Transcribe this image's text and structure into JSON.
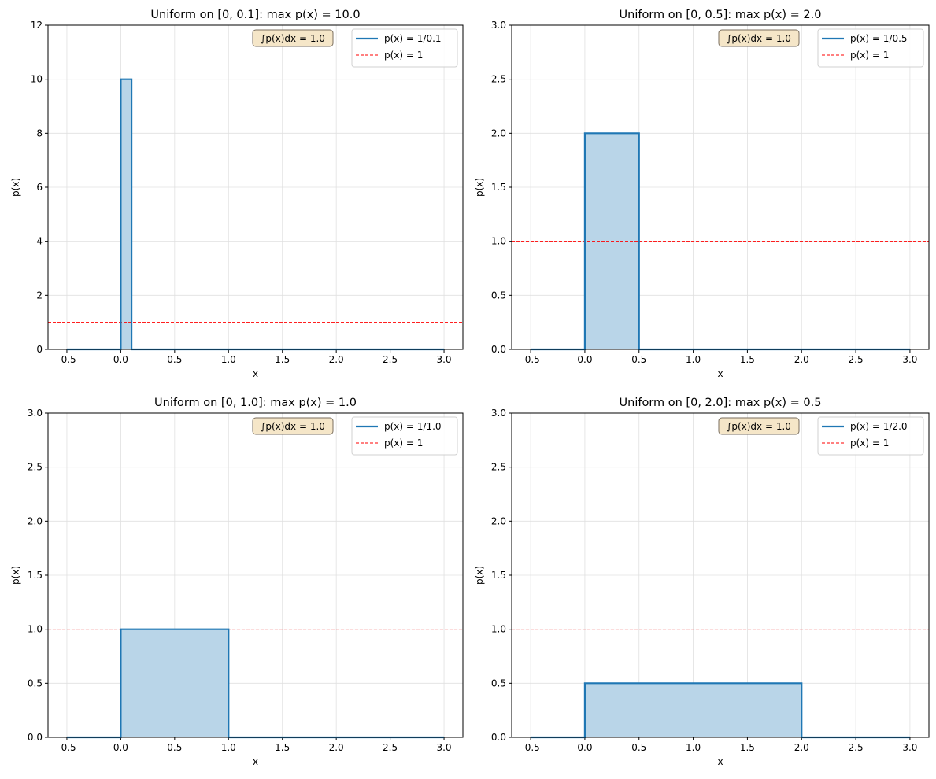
{
  "chart_data": [
    {
      "type": "area",
      "title": "Uniform on [0, 0.1]: max p(x) = 10.0",
      "xlabel": "x",
      "ylabel": "p(x)",
      "xlim": [
        -0.675,
        3.175
      ],
      "ylim": [
        0,
        12
      ],
      "xticks": [
        "-0.5",
        "0.0",
        "0.5",
        "1.0",
        "1.5",
        "2.0",
        "2.5",
        "3.0"
      ],
      "yticks": [
        "0",
        "2",
        "4",
        "6",
        "8",
        "10",
        "12"
      ],
      "interval": [
        0,
        0.1
      ],
      "density": 10.0,
      "x_range": [
        -0.5,
        3.0
      ],
      "reference_line": 1,
      "legend": [
        "p(x) = 1/0.1",
        "p(x) = 1"
      ],
      "annotation": "∫p(x)dx = 1.0",
      "grid": true,
      "legend_position": "top-right"
    },
    {
      "type": "area",
      "title": "Uniform on [0, 0.5]: max p(x) = 2.0",
      "xlabel": "x",
      "ylabel": "p(x)",
      "xlim": [
        -0.675,
        3.175
      ],
      "ylim": [
        0,
        3
      ],
      "xticks": [
        "-0.5",
        "0.0",
        "0.5",
        "1.0",
        "1.5",
        "2.0",
        "2.5",
        "3.0"
      ],
      "yticks": [
        "0.0",
        "0.5",
        "1.0",
        "1.5",
        "2.0",
        "2.5",
        "3.0"
      ],
      "interval": [
        0,
        0.5
      ],
      "density": 2.0,
      "x_range": [
        -0.5,
        3.0
      ],
      "reference_line": 1,
      "legend": [
        "p(x) = 1/0.5",
        "p(x) = 1"
      ],
      "annotation": "∫p(x)dx = 1.0",
      "grid": true,
      "legend_position": "top-right"
    },
    {
      "type": "area",
      "title": "Uniform on [0, 1.0]: max p(x) = 1.0",
      "xlabel": "x",
      "ylabel": "p(x)",
      "xlim": [
        -0.675,
        3.175
      ],
      "ylim": [
        0,
        3
      ],
      "xticks": [
        "-0.5",
        "0.0",
        "0.5",
        "1.0",
        "1.5",
        "2.0",
        "2.5",
        "3.0"
      ],
      "yticks": [
        "0.0",
        "0.5",
        "1.0",
        "1.5",
        "2.0",
        "2.5",
        "3.0"
      ],
      "interval": [
        0,
        1.0
      ],
      "density": 1.0,
      "x_range": [
        -0.5,
        3.0
      ],
      "reference_line": 1,
      "legend": [
        "p(x) = 1/1.0",
        "p(x) = 1"
      ],
      "annotation": "∫p(x)dx = 1.0",
      "grid": true,
      "legend_position": "top-right"
    },
    {
      "type": "area",
      "title": "Uniform on [0, 2.0]: max p(x) = 0.5",
      "xlabel": "x",
      "ylabel": "p(x)",
      "xlim": [
        -0.675,
        3.175
      ],
      "ylim": [
        0,
        3
      ],
      "xticks": [
        "-0.5",
        "0.0",
        "0.5",
        "1.0",
        "1.5",
        "2.0",
        "2.5",
        "3.0"
      ],
      "yticks": [
        "0.0",
        "0.5",
        "1.0",
        "1.5",
        "2.0",
        "2.5",
        "3.0"
      ],
      "interval": [
        0,
        2.0
      ],
      "density": 0.5,
      "x_range": [
        -0.5,
        3.0
      ],
      "reference_line": 1,
      "legend": [
        "p(x) = 1/2.0",
        "p(x) = 1"
      ],
      "annotation": "∫p(x)dx = 1.0",
      "grid": true,
      "legend_position": "top-right"
    }
  ],
  "colors": {
    "line": "#1f77b4",
    "fill": "#b9d5e8",
    "reference": "#ff0000",
    "annotation_bg": "#f5e6c8"
  }
}
